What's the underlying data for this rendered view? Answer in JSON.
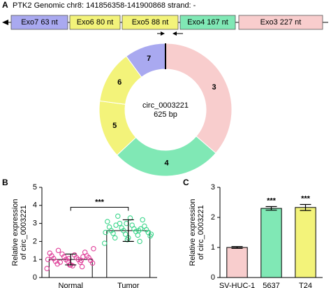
{
  "panel_labels": [
    "A",
    "B",
    "C"
  ],
  "genomic": {
    "title": "PTK2 Genomic chr8: 141856358-141900868 strand: -",
    "exons": [
      {
        "label": "Exo7 63 nt",
        "color": "#a9a9f0"
      },
      {
        "label": "Exo6 80 nt",
        "color": "#f3f37a"
      },
      {
        "label": "Exo5 88 nt",
        "color": "#f3f37a"
      },
      {
        "label": "Exo4 167 nt",
        "color": "#80e8b5"
      },
      {
        "label": "Exo3 227 nt",
        "color": "#f8cdcd"
      }
    ]
  },
  "chart_data": [
    {
      "type": "pie",
      "donut": true,
      "categories": [
        "3",
        "4",
        "5",
        "6",
        "7"
      ],
      "values": [
        227,
        167,
        88,
        80,
        63
      ],
      "colors": [
        "#f8cdcd",
        "#80e8b5",
        "#f3f37a",
        "#f3f37a",
        "#a9a9f0"
      ],
      "center_text": [
        "circ_0003221",
        "625 bp"
      ]
    },
    {
      "type": "bar",
      "categories": [
        "Normal",
        "Tumor"
      ],
      "values": [
        1.0,
        2.6
      ],
      "errors": [
        0.3,
        0.6
      ],
      "colors": [
        "#ffffff",
        "#ffffff"
      ],
      "point_colors": [
        "#e0409a",
        "#3dd68c"
      ],
      "points": [
        [
          0.5,
          0.6,
          0.7,
          0.75,
          0.8,
          0.85,
          0.9,
          0.9,
          0.95,
          1.0,
          1.0,
          1.05,
          1.1,
          1.1,
          1.15,
          1.2,
          1.2,
          1.25,
          1.3,
          1.35,
          1.4,
          0.65,
          0.85,
          1.0,
          1.15,
          0.7,
          1.5,
          1.6,
          0.95,
          1.05
        ],
        [
          1.9,
          2.0,
          2.1,
          2.2,
          2.3,
          2.35,
          2.4,
          2.45,
          2.5,
          2.55,
          2.6,
          2.6,
          2.65,
          2.7,
          2.75,
          2.8,
          2.85,
          2.9,
          3.0,
          3.1,
          3.2,
          3.3,
          3.4,
          2.5,
          2.7,
          2.2,
          2.9,
          2.4,
          2.6,
          3.0
        ]
      ],
      "ylim": [
        0,
        5
      ],
      "yticks": [
        0,
        1,
        2,
        3,
        4,
        5
      ],
      "ylabel": [
        "Relative expression",
        "of circ_0003221"
      ],
      "significance_label": "***"
    },
    {
      "type": "bar",
      "categories": [
        "SV-HUC-1",
        "5637",
        "T24"
      ],
      "values": [
        1.0,
        2.3,
        2.33
      ],
      "errors": [
        0.03,
        0.06,
        0.1
      ],
      "colors": [
        "#f8cdcd",
        "#80e8b5",
        "#f3f37a"
      ],
      "annotations": [
        null,
        "***",
        "***"
      ],
      "ylim": [
        0,
        3
      ],
      "yticks": [
        0,
        1,
        2,
        3
      ],
      "ylabel": [
        "Relative expression",
        "of circ_0003221"
      ]
    }
  ]
}
